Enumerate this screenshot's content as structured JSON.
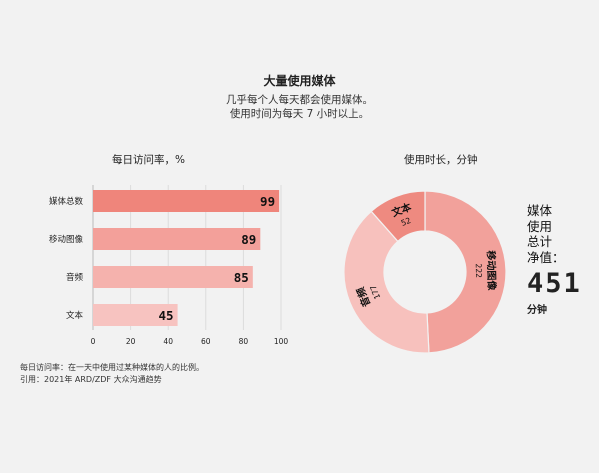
{
  "header": {
    "title": "大量使用媒体",
    "subtitle_lines": [
      "几乎每个人每天都会使用媒体。",
      "使用时间为每天 7 小时以上。"
    ]
  },
  "chart_data": [
    {
      "type": "bar",
      "orientation": "horizontal",
      "title": "每日访问率，%",
      "categories": [
        "媒体总数",
        "移动图像",
        "音频",
        "文本"
      ],
      "values": [
        99,
        89,
        85,
        45
      ],
      "xlim": [
        0,
        100
      ],
      "xticks": [
        0,
        20,
        40,
        60,
        80,
        100
      ],
      "grid": true,
      "colors": [
        "#ef857b",
        "#f3a09a",
        "#f5b2ad",
        "#f7c3c0"
      ]
    },
    {
      "type": "pie",
      "style": "donut",
      "title": "使用时长，分钟",
      "labels": [
        "移动图像",
        "音频",
        "文本"
      ],
      "values": [
        222,
        177,
        52
      ],
      "colors": [
        "#f2a19b",
        "#f7c1bd",
        "#ee8a80"
      ],
      "total": {
        "label_lines": [
          "媒体",
          "使用",
          "总计",
          "净值："
        ],
        "value": "451",
        "unit": "分钟"
      }
    }
  ],
  "footnotes": [
    "每日访问率：在一天中使用过某种媒体的人的比例。",
    "引用：2021年 ARD/ZDF 大众沟通趋势"
  ]
}
